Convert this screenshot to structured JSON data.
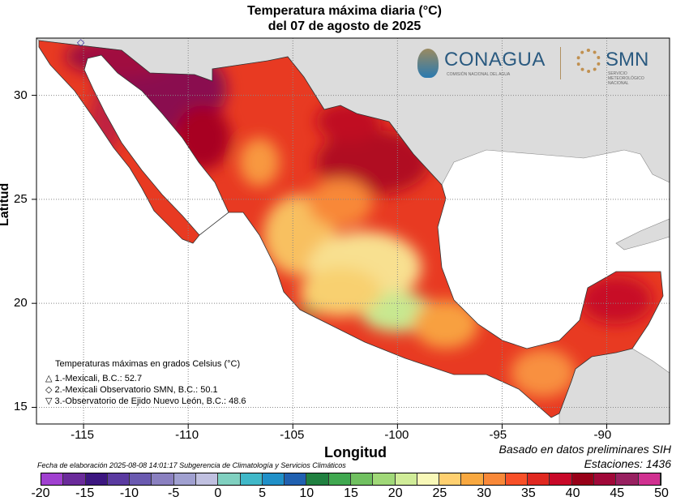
{
  "title": {
    "line1": "Temperatura máxima diaria (°C)",
    "line2": "del 07 de agosto de 2025"
  },
  "axes": {
    "xlabel": "Longitud",
    "ylabel": "Latitud",
    "xticks": [
      "-115",
      "-110",
      "-105",
      "-100",
      "-95",
      "-90"
    ],
    "yticks": [
      "30",
      "25",
      "20",
      "15"
    ],
    "xlim": [
      -117.25,
      -87
    ],
    "ylim": [
      14.2,
      32.75
    ],
    "grid": true
  },
  "logos": {
    "conagua": "CONAGUA",
    "conagua_sub": "COMISIÓN NACIONAL DEL AGUA",
    "smn": "SMN",
    "smn_sub": "SERVICIO METEOROLÓGICO NACIONAL"
  },
  "legend": {
    "title": "Temperaturas máximas en grados Celsius (°C)",
    "items": [
      {
        "symbol": "△",
        "text": "1.-Mexicali, B.C.: 52.7"
      },
      {
        "symbol": "◇",
        "text": "2.-Mexicali Observatorio SMN, B.C.: 50.1"
      },
      {
        "symbol": "▽",
        "text": "3.-Observatorio de Ejido Nuevo León, B.C.: 48.6"
      }
    ]
  },
  "footer": {
    "left": "Fecha de elaboración 2025-08-08 14:01:17 Subgerencia de Climatología y Servicios Climáticos",
    "source": "Basado en datos preliminares SIH",
    "stations": "Estaciones:  1436"
  },
  "colorbar": {
    "labels": [
      "-20",
      "-15",
      "-10",
      "-5",
      "0",
      "5",
      "10",
      "15",
      "20",
      "25",
      "30",
      "35",
      "40",
      "45",
      "50"
    ],
    "min": -20,
    "max": 50,
    "step": 2.5,
    "colors": [
      "#a040d0",
      "#6a2a9a",
      "#3c1680",
      "#5a3aa0",
      "#6a5ab0",
      "#8a80c0",
      "#a0a0d0",
      "#c0c0e0",
      "#80d0c0",
      "#40b8c8",
      "#2090c8",
      "#2060b0",
      "#208040",
      "#40a850",
      "#70c060",
      "#a0d878",
      "#d0ec98",
      "#f8f8b8",
      "#ffd070",
      "#f8a840",
      "#f88838",
      "#f85028",
      "#e02820",
      "#c80828",
      "#980018",
      "#a00838",
      "#982060",
      "#d03090"
    ]
  }
}
